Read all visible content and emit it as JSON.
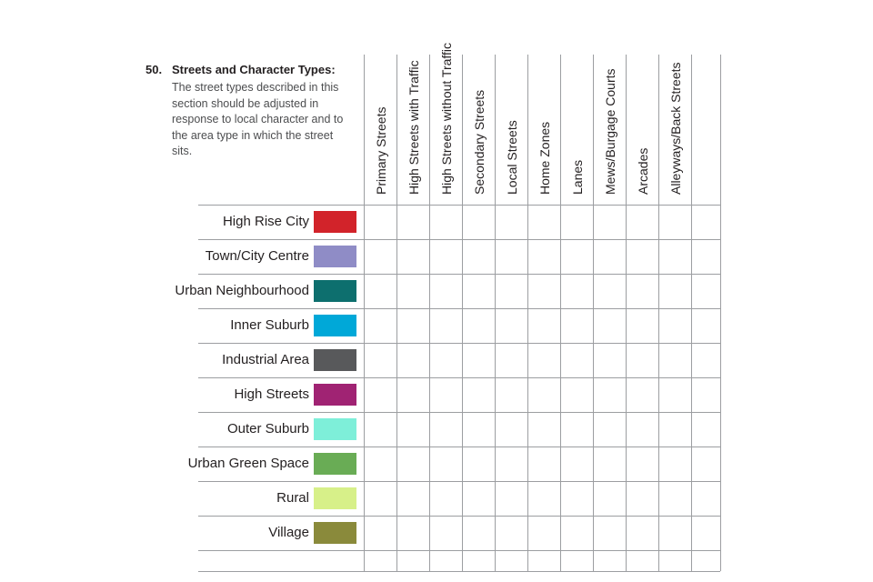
{
  "section": {
    "number": "50.",
    "title": "Streets and Character Types:",
    "description": "The street types described in this section should be adjusted in response to local character and to the area type in which the street sits."
  },
  "matrix": {
    "columns": [
      "Primary Streets",
      "High Streets with Traffic",
      "High Streets without Traffic",
      "Secondary Streets",
      "Local Streets",
      "Home Zones",
      "Lanes",
      "Mews/Burgage Courts",
      "Arcades",
      "Alleyways/Back Streets"
    ],
    "rows": [
      {
        "label": "High Rise City",
        "color": "#d2232a"
      },
      {
        "label": "Town/City Centre",
        "color": "#8f8cc6"
      },
      {
        "label": "Urban Neighbourhood",
        "color": "#0d6f6e"
      },
      {
        "label": "Inner Suburb",
        "color": "#00a8d8"
      },
      {
        "label": "Industrial Area",
        "color": "#58595b"
      },
      {
        "label": "High Streets",
        "color": "#a02373"
      },
      {
        "label": "Outer Suburb",
        "color": "#7eefd9"
      },
      {
        "label": "Urban Green Space",
        "color": "#69ac55"
      },
      {
        "label": "Rural",
        "color": "#d7f089"
      },
      {
        "label": "Village",
        "color": "#8a8a3b"
      }
    ]
  }
}
